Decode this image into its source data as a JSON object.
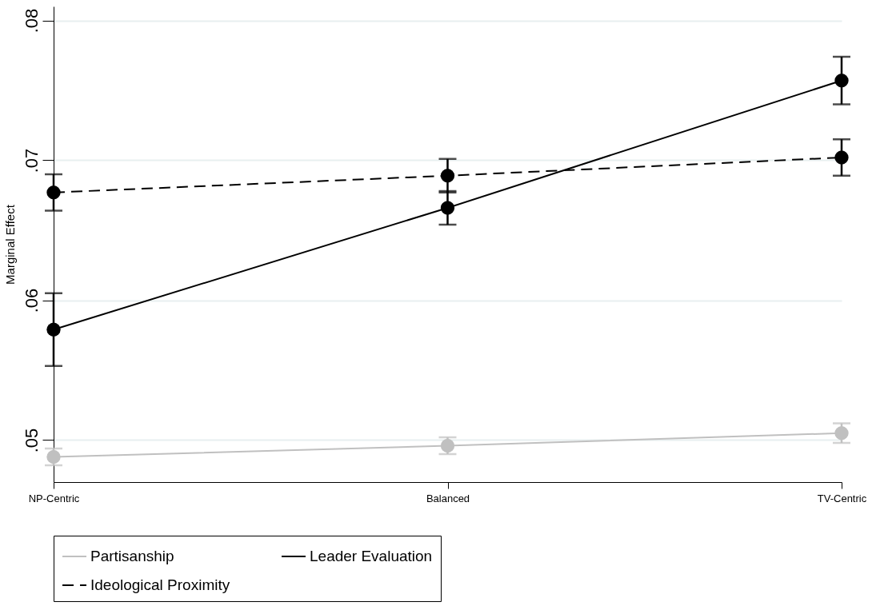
{
  "chart_data": {
    "type": "line",
    "ylabel": "Marginal Effect",
    "categories": [
      "NP-Centric",
      "Balanced",
      "TV-Centric"
    ],
    "series": [
      {
        "name": "Partisanship",
        "color": "#c0c0c0",
        "line_style": "solid",
        "values": [
          0.0488,
          0.0496,
          0.0505
        ],
        "errors": [
          0.0006,
          0.0006,
          0.0007
        ]
      },
      {
        "name": "Leader Evaluation",
        "color": "#000000",
        "line_style": "solid",
        "values": [
          0.0579,
          0.0666,
          0.0757
        ],
        "errors": [
          0.0026,
          0.0012,
          0.0017
        ]
      },
      {
        "name": "Ideological Proximity",
        "color": "#000000",
        "line_style": "dashed",
        "values": [
          0.0677,
          0.0689,
          0.0702
        ],
        "errors": [
          0.0013,
          0.0012,
          0.0013
        ]
      }
    ],
    "ylim": [
      0.047,
      0.081
    ],
    "yticks": [
      {
        "value": 0.05,
        "label": ".05"
      },
      {
        "value": 0.06,
        "label": ".06"
      },
      {
        "value": 0.07,
        "label": ".07"
      },
      {
        "value": 0.08,
        "label": ".08"
      }
    ],
    "grid": "y",
    "legend": "bottom",
    "marker": "circle"
  }
}
